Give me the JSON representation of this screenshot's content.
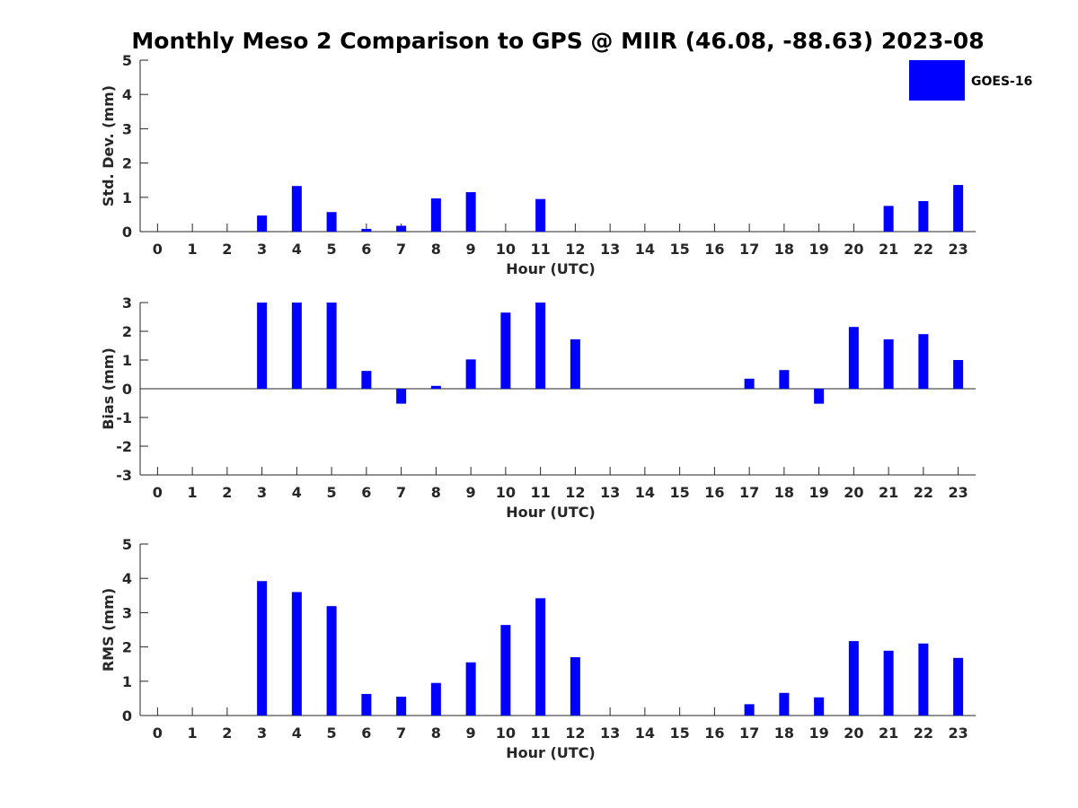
{
  "title": "Monthly Meso 2 Comparison to GPS @ MIIR (46.08, -88.63) 2023-08",
  "colors": {
    "bar": "#0000ff",
    "axis": "#262626",
    "background": "#ffffff"
  },
  "legend": {
    "label": "GOES-16",
    "position": "top-right"
  },
  "chart_data": [
    {
      "type": "bar",
      "title": "Monthly Meso 2 Comparison to GPS @ MIIR (46.08, -88.63) 2023-08",
      "xlabel": "Hour (UTC)",
      "ylabel": "Std. Dev. (mm)",
      "ylim": [
        0,
        5
      ],
      "yticks": [
        0,
        1,
        2,
        3,
        4,
        5
      ],
      "categories": [
        "0",
        "1",
        "2",
        "3",
        "4",
        "5",
        "6",
        "7",
        "8",
        "9",
        "10",
        "11",
        "12",
        "13",
        "14",
        "15",
        "16",
        "17",
        "18",
        "19",
        "20",
        "21",
        "22",
        "23"
      ],
      "series": [
        {
          "name": "GOES-16",
          "values": [
            0,
            0,
            0,
            0.47,
            1.33,
            0.57,
            0.08,
            0.17,
            0.97,
            1.15,
            0,
            0.95,
            0,
            0,
            0,
            0,
            0,
            0,
            0,
            0,
            0,
            0.75,
            0.89,
            1.36
          ]
        }
      ]
    },
    {
      "type": "bar",
      "xlabel": "Hour (UTC)",
      "ylabel": "Bias (mm)",
      "ylim": [
        -3,
        3
      ],
      "yticks": [
        -3,
        -2,
        -1,
        0,
        1,
        2,
        3
      ],
      "categories": [
        "0",
        "1",
        "2",
        "3",
        "4",
        "5",
        "6",
        "7",
        "8",
        "9",
        "10",
        "11",
        "12",
        "13",
        "14",
        "15",
        "16",
        "17",
        "18",
        "19",
        "20",
        "21",
        "22",
        "23"
      ],
      "series": [
        {
          "name": "GOES-16",
          "values": [
            0,
            0,
            0,
            3.0,
            3.0,
            3.0,
            0.62,
            -0.52,
            0.1,
            1.02,
            2.65,
            3.0,
            1.72,
            0,
            0,
            0,
            0,
            0.35,
            0.65,
            -0.52,
            2.15,
            1.72,
            1.9,
            1.0
          ]
        }
      ]
    },
    {
      "type": "bar",
      "xlabel": "Hour (UTC)",
      "ylabel": "RMS (mm)",
      "ylim": [
        0,
        5
      ],
      "yticks": [
        0,
        1,
        2,
        3,
        4,
        5
      ],
      "categories": [
        "0",
        "1",
        "2",
        "3",
        "4",
        "5",
        "6",
        "7",
        "8",
        "9",
        "10",
        "11",
        "12",
        "13",
        "14",
        "15",
        "16",
        "17",
        "18",
        "19",
        "20",
        "21",
        "22",
        "23"
      ],
      "series": [
        {
          "name": "GOES-16",
          "values": [
            0,
            0,
            0,
            3.92,
            3.6,
            3.19,
            0.63,
            0.55,
            0.95,
            1.55,
            2.64,
            3.42,
            1.7,
            0,
            0,
            0,
            0,
            0.33,
            0.66,
            0.53,
            2.17,
            1.89,
            2.1,
            1.68
          ]
        }
      ]
    }
  ]
}
